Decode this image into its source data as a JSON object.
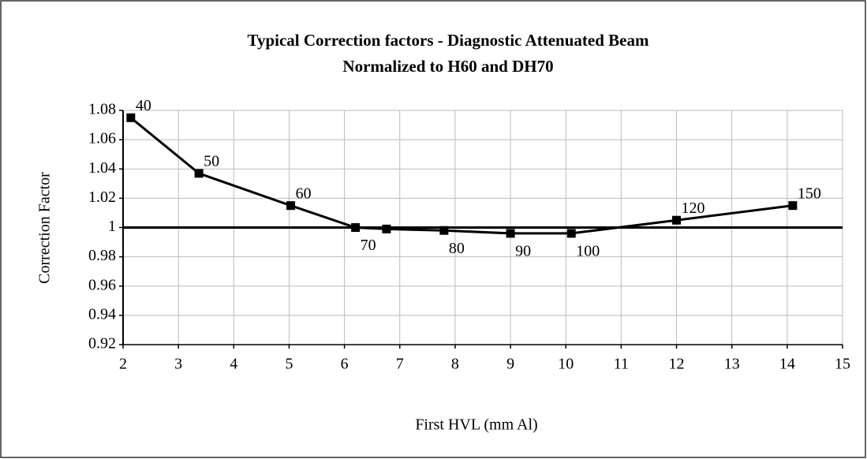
{
  "chart_data": {
    "type": "line",
    "title": "Typical Correction factors - Diagnostic Attenuated Beam",
    "subtitle": "Normalized to H60 and DH70",
    "x_label": "First HVL (mm Al)",
    "y_label": "Correction Factor",
    "x": [
      2.14,
      3.37,
      5.03,
      6.2,
      6.76,
      7.8,
      9.0,
      10.1,
      12.0,
      14.1
    ],
    "series": [
      {
        "name": "Correction factor",
        "color": "#000000",
        "values": [
          1.075,
          1.037,
          1.015,
          1.0,
          0.999,
          0.998,
          0.996,
          0.996,
          1.005,
          1.015
        ]
      }
    ],
    "point_labels": [
      "40",
      "50",
      "60",
      "70",
      null,
      "80",
      "90",
      "100",
      "120",
      "150"
    ],
    "reference_line": 1,
    "xlim": [
      2,
      15
    ],
    "xticks": [
      2,
      3,
      4,
      5,
      6,
      7,
      8,
      9,
      10,
      11,
      12,
      13,
      14,
      15
    ],
    "ylim": [
      0.92,
      1.08
    ],
    "yticks": [
      0.92,
      0.94,
      0.96,
      0.98,
      1,
      1.02,
      1.04,
      1.06,
      1.08
    ],
    "grid": true
  }
}
